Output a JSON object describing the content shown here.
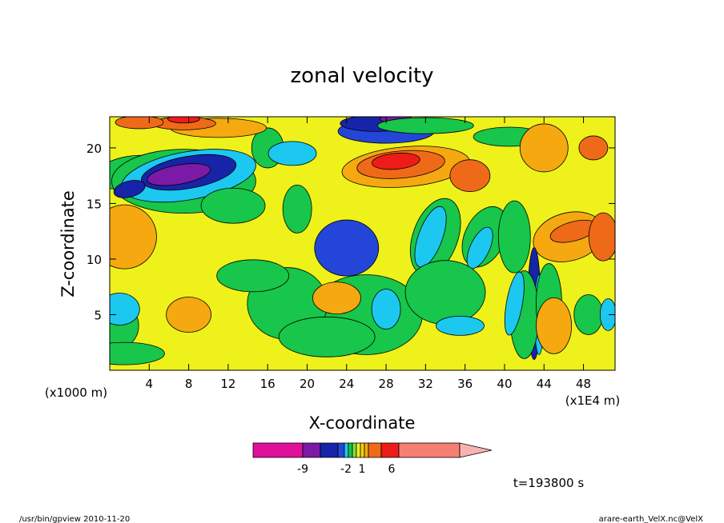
{
  "chart_data": {
    "type": "heatmap",
    "title": "zonal velocity",
    "xlabel": "X-coordinate",
    "ylabel": "Z-coordinate",
    "x_unit_note": "(x1E4 m)",
    "y_unit_note": "(x1000 m)",
    "x_ticks": [
      4,
      8,
      12,
      16,
      20,
      24,
      28,
      32,
      36,
      40,
      44,
      48
    ],
    "y_ticks": [
      5,
      10,
      15,
      20
    ],
    "xlim": [
      0,
      51.2
    ],
    "ylim": [
      0,
      22.8
    ],
    "colorbar": {
      "colors": [
        "#e0109c",
        "#7a1aa6",
        "#1624a8",
        "#2346d8",
        "#1cc8ef",
        "#17c64a",
        "#7de03a",
        "#eef21a",
        "#f3ce10",
        "#f5a810",
        "#ef6a18",
        "#ee1c18",
        "#f58072",
        "#f9b2b0"
      ],
      "tick_labels": [
        "-9",
        "-2",
        "1",
        "6"
      ]
    },
    "time_label": "t=193800 s"
  },
  "footer": {
    "left": "/usr/bin/gpview  2010-11-20",
    "right": "arare-earth_VelX.nc@VelX"
  }
}
